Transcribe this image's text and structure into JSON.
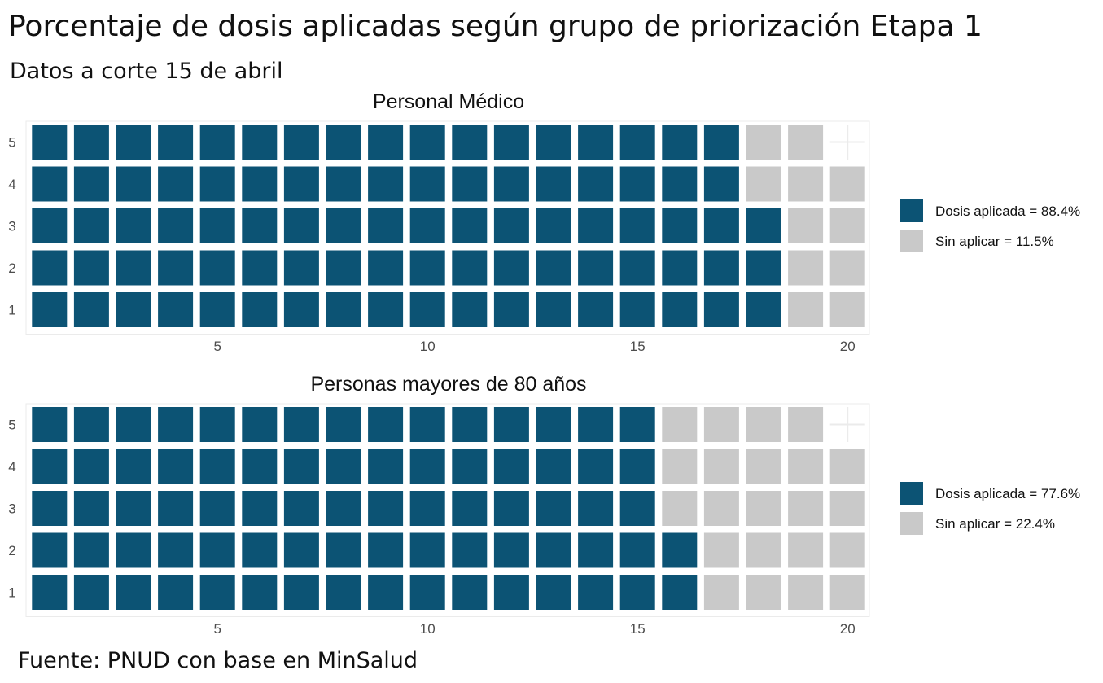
{
  "page": {
    "title": "Porcentaje  de dosis aplicadas según grupo de priorización Etapa 1",
    "subtitle": "Datos a corte 15 de abril",
    "source": "Fuente: PNUD con base en MinSalud"
  },
  "colors": {
    "applied": "#0c5374",
    "not_applied": "#c9c9c9",
    "panel_grid": "#ebebeb"
  },
  "chart_data": [
    {
      "type": "waffle",
      "title": "Personal Médico",
      "columns": 20,
      "rows": 5,
      "total_cells": 99,
      "x_ticks": [
        5,
        10,
        15,
        20
      ],
      "y_ticks": [
        1,
        2,
        3,
        4,
        5
      ],
      "fill_order": "column-wise, bottom to top",
      "grid": true,
      "legend_position": "right",
      "series": [
        {
          "name": "Dosis aplicada = 88.4%",
          "cells": 88,
          "percent": 88.4
        },
        {
          "name": "Sin aplicar = 11.5%",
          "cells": 11,
          "percent": 11.5
        }
      ]
    },
    {
      "type": "waffle",
      "title": "Personas mayores de 80 años",
      "columns": 20,
      "rows": 5,
      "total_cells": 99,
      "x_ticks": [
        5,
        10,
        15,
        20
      ],
      "y_ticks": [
        1,
        2,
        3,
        4,
        5
      ],
      "fill_order": "column-wise, bottom to top",
      "grid": true,
      "legend_position": "right",
      "series": [
        {
          "name": "Dosis aplicada = 77.6%",
          "cells": 77,
          "percent": 77.6
        },
        {
          "name": "Sin aplicar = 22.4%",
          "cells": 22,
          "percent": 22.4
        }
      ]
    }
  ]
}
